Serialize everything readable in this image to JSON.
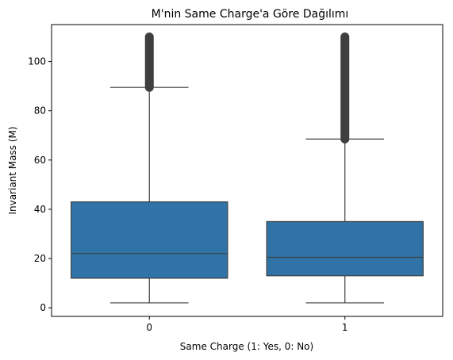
{
  "chart_data": {
    "type": "box",
    "title": "M'nin Same Charge'a Göre Dağılımı",
    "xlabel": "Same Charge (1: Yes, 0: No)",
    "ylabel": "Invariant Mass (M)",
    "categories": [
      "0",
      "1"
    ],
    "ylim": [
      -3.5,
      115
    ],
    "yticks": [
      0,
      20,
      40,
      60,
      80,
      100
    ],
    "grid": false,
    "box_color": "#2f73a7",
    "line_color": "#3f3f3f",
    "boxes": [
      {
        "category": "0",
        "whisker_low": 2,
        "q1": 12,
        "median": 22,
        "q3": 43,
        "whisker_high": 89.5,
        "outliers_range": [
          89.5,
          110
        ]
      },
      {
        "category": "1",
        "whisker_low": 2,
        "q1": 13,
        "median": 20.5,
        "q3": 35,
        "whisker_high": 68.5,
        "outliers_range": [
          68.5,
          110
        ]
      }
    ]
  }
}
